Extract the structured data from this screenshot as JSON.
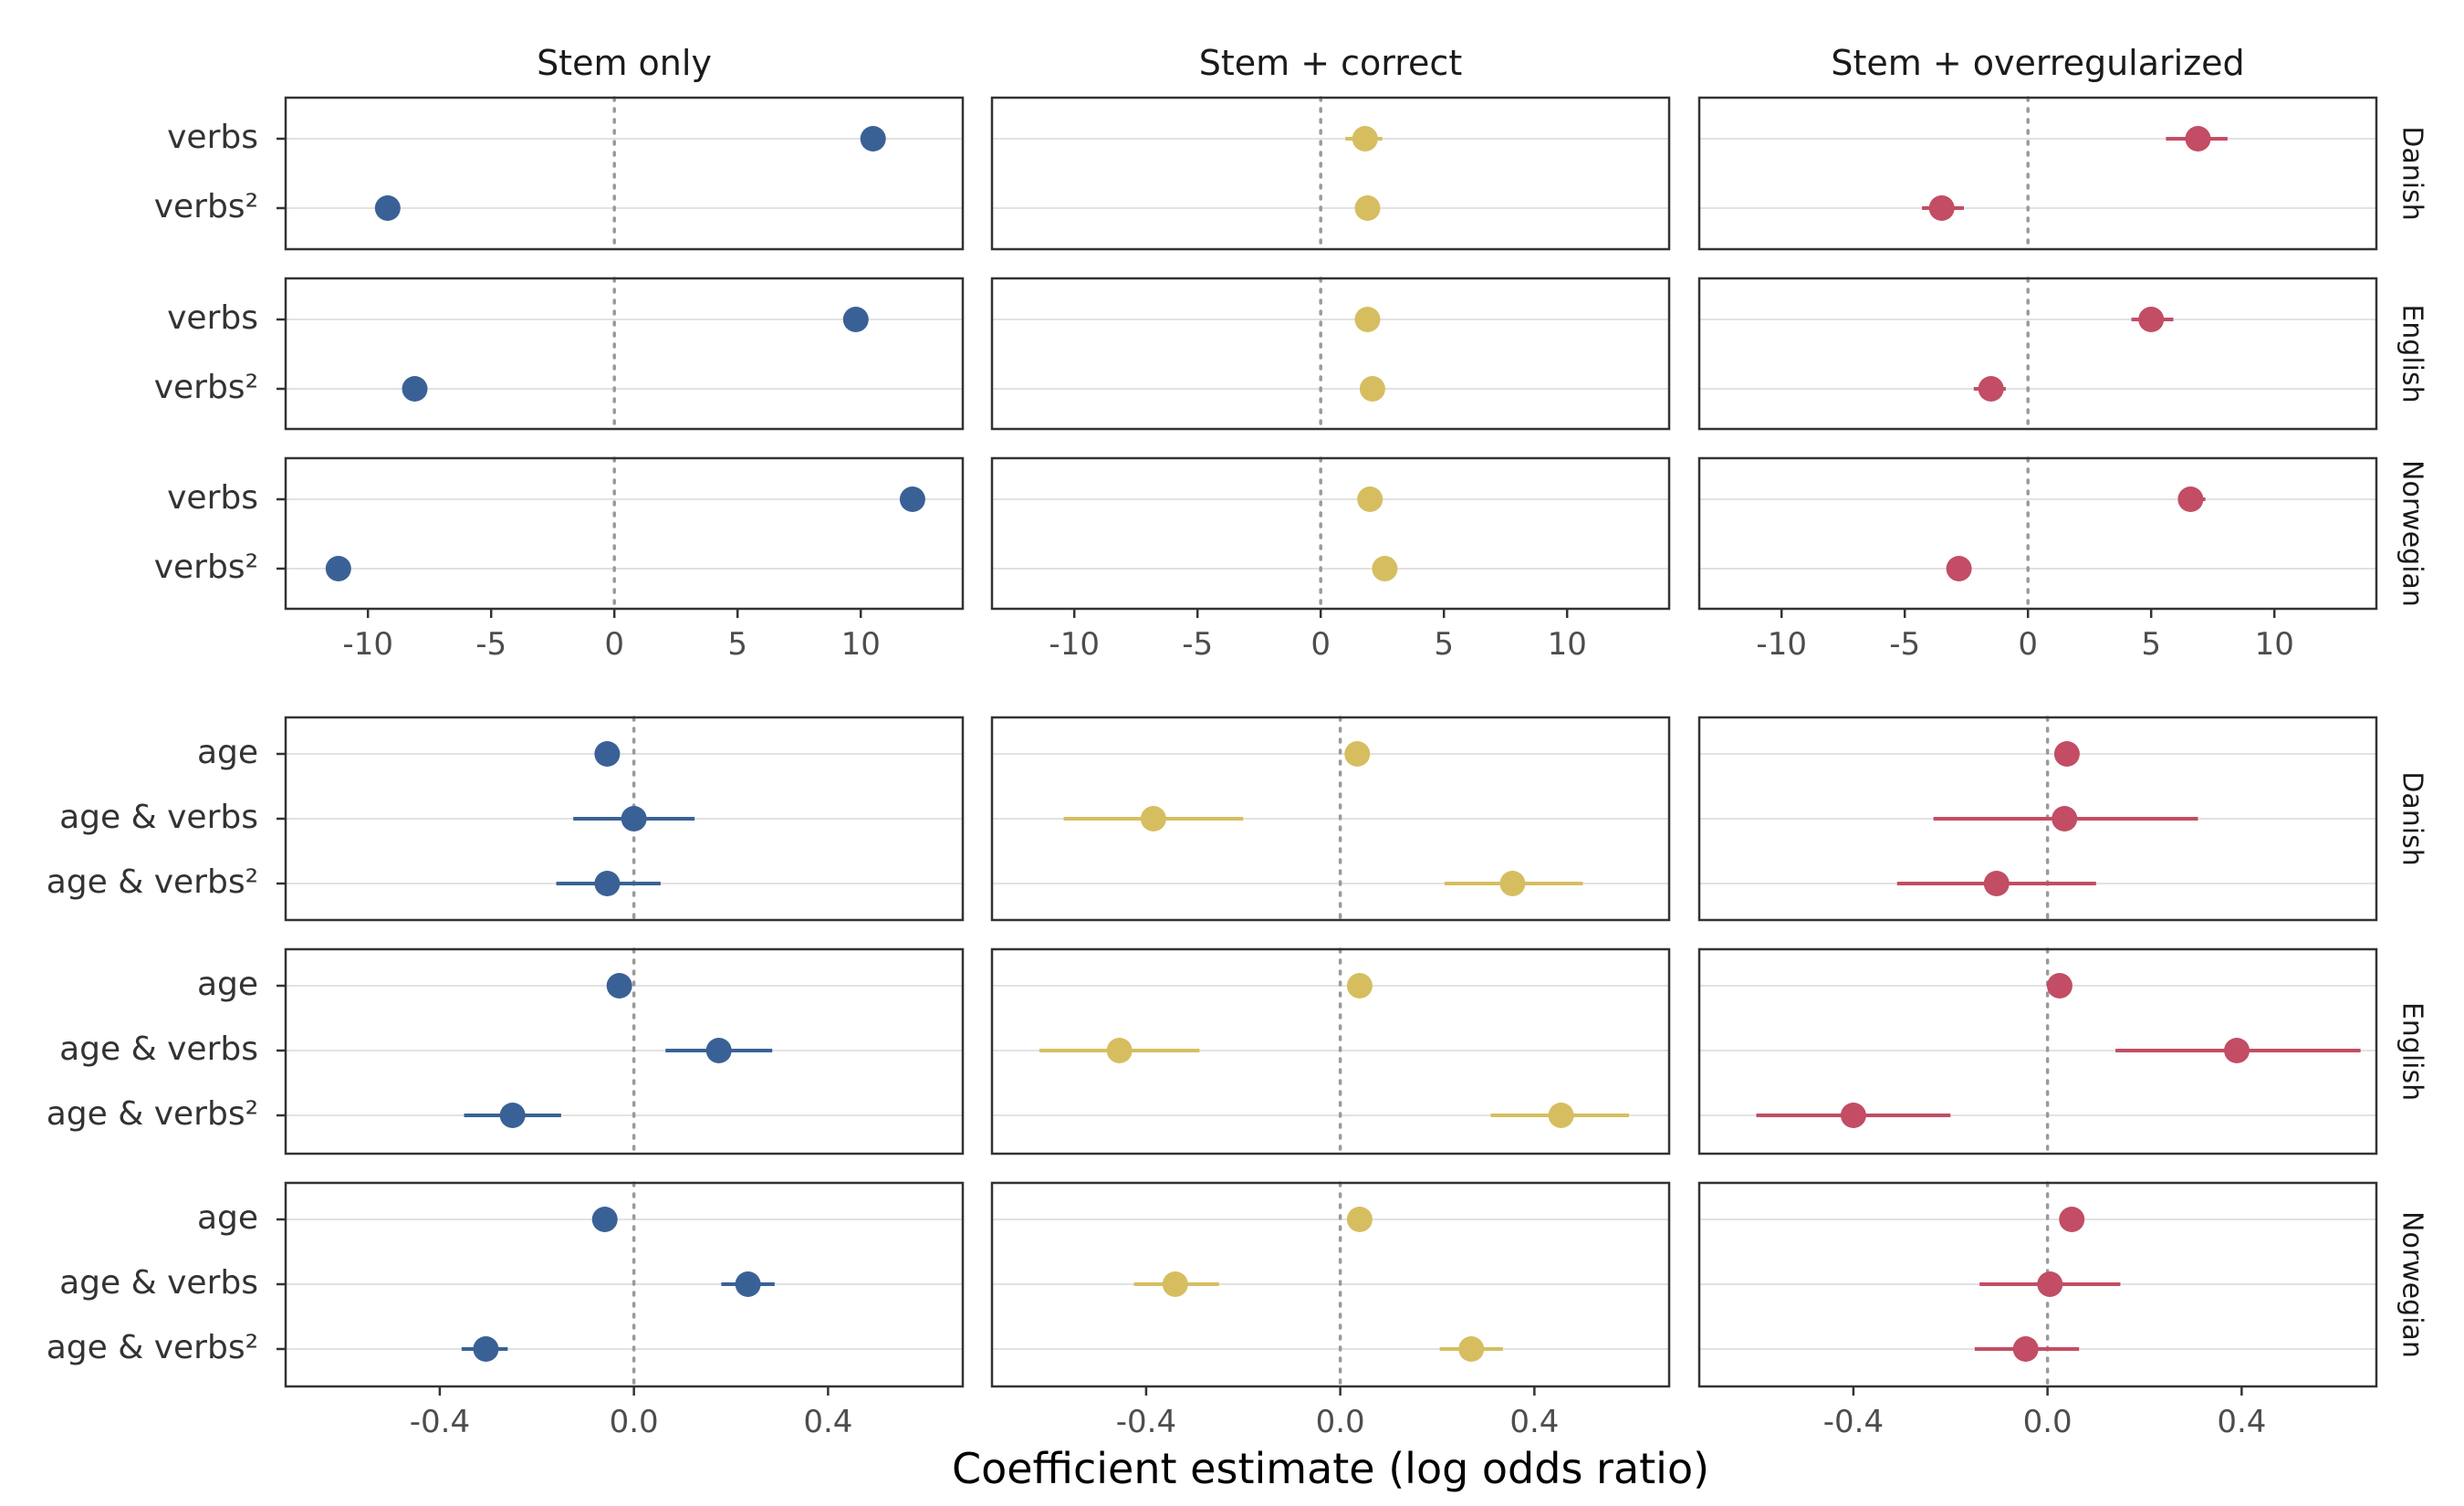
{
  "chart_data": {
    "type": "scatter",
    "xlabel": "Coefficient estimate (log odds ratio)",
    "columns": [
      "Stem only",
      "Stem + correct",
      "Stem + overregularized"
    ],
    "languages": [
      "Danish",
      "English",
      "Norwegian"
    ],
    "colors": {
      "Stem only": "#3a6196",
      "Stem + correct": "#d6be60",
      "Stem + overregularized": "#c24d64"
    },
    "reference_line": 0,
    "panels_top": {
      "terms": [
        "verbs",
        "verbs²"
      ],
      "xlim": [
        -12.6,
        13.4
      ],
      "xticks": [
        -10,
        -5,
        0,
        5,
        10
      ],
      "xtick_labels": [
        "-10",
        "-5",
        "0",
        "5",
        "10"
      ],
      "grid": true,
      "series": [
        {
          "column": "Stem only",
          "language": "Danish",
          "estimates": [
            10.5,
            -9.2
          ],
          "ci": [
            [
              10.1,
              10.9
            ],
            [
              -9.5,
              -8.9
            ]
          ]
        },
        {
          "column": "Stem only",
          "language": "English",
          "estimates": [
            9.8,
            -8.1
          ],
          "ci": [
            [
              9.5,
              10.1
            ],
            [
              -8.4,
              -7.8
            ]
          ]
        },
        {
          "column": "Stem only",
          "language": "Norwegian",
          "estimates": [
            12.1,
            -11.2
          ],
          "ci": [
            [
              11.8,
              12.4
            ],
            [
              -11.5,
              -10.9
            ]
          ]
        },
        {
          "column": "Stem + correct",
          "language": "Danish",
          "estimates": [
            1.8,
            1.9
          ],
          "ci": [
            [
              1.0,
              2.5
            ],
            [
              1.5,
              2.3
            ]
          ]
        },
        {
          "column": "Stem + correct",
          "language": "English",
          "estimates": [
            1.9,
            2.1
          ],
          "ci": [
            [
              1.6,
              2.2
            ],
            [
              1.8,
              2.4
            ]
          ]
        },
        {
          "column": "Stem + correct",
          "language": "Norwegian",
          "estimates": [
            2.0,
            2.6
          ],
          "ci": [
            [
              1.7,
              2.3
            ],
            [
              2.3,
              2.9
            ]
          ]
        },
        {
          "column": "Stem + overregularized",
          "language": "Danish",
          "estimates": [
            6.9,
            -3.5
          ],
          "ci": [
            [
              5.6,
              8.1
            ],
            [
              -4.3,
              -2.6
            ]
          ]
        },
        {
          "column": "Stem + overregularized",
          "language": "English",
          "estimates": [
            5.0,
            -1.5
          ],
          "ci": [
            [
              4.2,
              5.9
            ],
            [
              -2.2,
              -0.9
            ]
          ]
        },
        {
          "column": "Stem + overregularized",
          "language": "Norwegian",
          "estimates": [
            6.6,
            -2.8
          ],
          "ci": [
            [
              6.1,
              7.2
            ],
            [
              -3.1,
              -2.5
            ]
          ]
        }
      ]
    },
    "panels_bottom": {
      "terms": [
        "age",
        "age & verbs",
        "age & verbs²"
      ],
      "xlim": [
        -0.68,
        0.64
      ],
      "xticks": [
        -0.4,
        0.0,
        0.4
      ],
      "xtick_labels": [
        "-0.4",
        "0.0",
        "0.4"
      ],
      "grid": true,
      "series": [
        {
          "column": "Stem only",
          "language": "Danish",
          "estimates": [
            -0.055,
            0.0,
            -0.055
          ],
          "ci": [
            [
              -0.07,
              -0.04
            ],
            [
              -0.125,
              0.125
            ],
            [
              -0.16,
              0.055
            ]
          ]
        },
        {
          "column": "Stem only",
          "language": "English",
          "estimates": [
            -0.03,
            0.175,
            -0.25
          ],
          "ci": [
            [
              -0.045,
              -0.015
            ],
            [
              0.065,
              0.285
            ],
            [
              -0.35,
              -0.15
            ]
          ]
        },
        {
          "column": "Stem only",
          "language": "Norwegian",
          "estimates": [
            -0.06,
            0.235,
            -0.305
          ],
          "ci": [
            [
              -0.075,
              -0.045
            ],
            [
              0.18,
              0.29
            ],
            [
              -0.355,
              -0.26
            ]
          ]
        },
        {
          "column": "Stem + correct",
          "language": "Danish",
          "estimates": [
            0.035,
            -0.385,
            0.355
          ],
          "ci": [
            [
              0.02,
              0.05
            ],
            [
              -0.57,
              -0.2
            ],
            [
              0.215,
              0.5
            ]
          ]
        },
        {
          "column": "Stem + correct",
          "language": "English",
          "estimates": [
            0.04,
            -0.455,
            0.455
          ],
          "ci": [
            [
              0.025,
              0.055
            ],
            [
              -0.62,
              -0.29
            ],
            [
              0.31,
              0.595
            ]
          ]
        },
        {
          "column": "Stem + correct",
          "language": "Norwegian",
          "estimates": [
            0.04,
            -0.34,
            0.27
          ],
          "ci": [
            [
              0.025,
              0.055
            ],
            [
              -0.425,
              -0.25
            ],
            [
              0.205,
              0.335
            ]
          ]
        },
        {
          "column": "Stem + overregularized",
          "language": "Danish",
          "estimates": [
            0.04,
            0.035,
            -0.105
          ],
          "ci": [
            [
              0.025,
              0.055
            ],
            [
              -0.235,
              0.31
            ],
            [
              -0.31,
              0.1
            ]
          ]
        },
        {
          "column": "Stem + overregularized",
          "language": "English",
          "estimates": [
            0.025,
            0.39,
            -0.4
          ],
          "ci": [
            [
              0.01,
              0.04
            ],
            [
              0.14,
              0.645
            ],
            [
              -0.6,
              -0.2
            ]
          ]
        },
        {
          "column": "Stem + overregularized",
          "language": "Norwegian",
          "estimates": [
            0.05,
            0.005,
            -0.045
          ],
          "ci": [
            [
              0.035,
              0.065
            ],
            [
              -0.14,
              0.15
            ],
            [
              -0.15,
              0.065
            ]
          ]
        }
      ]
    }
  }
}
